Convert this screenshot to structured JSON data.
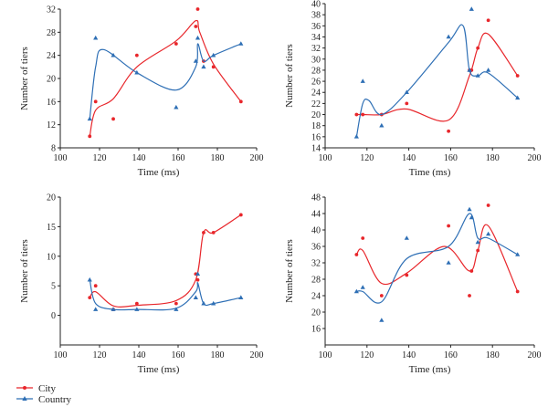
{
  "legend": [
    {
      "name": "City",
      "color": "#e8262b",
      "marker": "circle"
    },
    {
      "name": "Country",
      "color": "#2e6fb5",
      "marker": "triangle"
    }
  ],
  "chart_data": [
    {
      "type": "scatter",
      "position": "top-left",
      "xlabel": "Time (ms)",
      "ylabel": "Number of tiers",
      "xlim": [
        100,
        200
      ],
      "ylim": [
        8,
        32
      ],
      "xticks": [
        100,
        120,
        140,
        160,
        180,
        200
      ],
      "yticks": [
        8,
        12,
        16,
        20,
        24,
        28,
        32
      ],
      "series": [
        {
          "name": "City",
          "color": "#e8262b",
          "marker": "circle",
          "points": [
            [
              115,
              10
            ],
            [
              118,
              16
            ],
            [
              127,
              13
            ],
            [
              139,
              24
            ],
            [
              159,
              26
            ],
            [
              169,
              29
            ],
            [
              170,
              32
            ],
            [
              173,
              23
            ],
            [
              178,
              22
            ],
            [
              192,
              16
            ]
          ],
          "curve": [
            [
              115,
              10
            ],
            [
              118,
              14.5
            ],
            [
              127,
              16.5
            ],
            [
              139,
              22
            ],
            [
              159,
              26.5
            ],
            [
              169,
              30
            ],
            [
              171,
              28
            ],
            [
              178,
              22.5
            ],
            [
              192,
              16
            ]
          ]
        },
        {
          "name": "Country",
          "color": "#2e6fb5",
          "marker": "triangle",
          "points": [
            [
              115,
              13
            ],
            [
              118,
              27
            ],
            [
              127,
              24
            ],
            [
              139,
              21
            ],
            [
              159,
              15
            ],
            [
              169,
              23
            ],
            [
              170,
              27
            ],
            [
              173,
              22
            ],
            [
              178,
              24
            ],
            [
              192,
              26
            ]
          ],
          "curve": [
            [
              115,
              13
            ],
            [
              118,
              22
            ],
            [
              122,
              25
            ],
            [
              139,
              21
            ],
            [
              159,
              18
            ],
            [
              169,
              22
            ],
            [
              170,
              26
            ],
            [
              173,
              23
            ],
            [
              178,
              24
            ],
            [
              192,
              26
            ]
          ]
        }
      ]
    },
    {
      "type": "scatter",
      "position": "top-right",
      "xlabel": "Time (ms)",
      "ylabel": "Number of tiers",
      "xlim": [
        100,
        200
      ],
      "ylim": [
        14,
        40
      ],
      "xticks": [
        100,
        120,
        140,
        160,
        180,
        200
      ],
      "yticks": [
        14,
        16,
        18,
        20,
        22,
        24,
        26,
        28,
        30,
        32,
        34,
        36,
        38,
        40
      ],
      "series": [
        {
          "name": "City",
          "color": "#e8262b",
          "marker": "circle",
          "points": [
            [
              115,
              20
            ],
            [
              118,
              20
            ],
            [
              127,
              20
            ],
            [
              139,
              22
            ],
            [
              159,
              17
            ],
            [
              169,
              28
            ],
            [
              170,
              28
            ],
            [
              173,
              32
            ],
            [
              178,
              37
            ],
            [
              192,
              27
            ]
          ],
          "curve": [
            [
              115,
              20
            ],
            [
              118,
              20
            ],
            [
              127,
              20
            ],
            [
              139,
              21
            ],
            [
              159,
              19
            ],
            [
              169,
              27
            ],
            [
              173,
              32
            ],
            [
              178,
              34.5
            ],
            [
              192,
              27
            ]
          ]
        },
        {
          "name": "Country",
          "color": "#2e6fb5",
          "marker": "triangle",
          "points": [
            [
              115,
              16
            ],
            [
              118,
              26
            ],
            [
              127,
              18
            ],
            [
              139,
              24
            ],
            [
              159,
              34
            ],
            [
              169,
              28
            ],
            [
              170,
              39
            ],
            [
              173,
              27
            ],
            [
              178,
              28
            ],
            [
              192,
              23
            ]
          ],
          "curve": [
            [
              115,
              16
            ],
            [
              118,
              22
            ],
            [
              121,
              22.5
            ],
            [
              127,
              20
            ],
            [
              139,
              24
            ],
            [
              159,
              33
            ],
            [
              166,
              36
            ],
            [
              169,
              28
            ],
            [
              173,
              27
            ],
            [
              178,
              27.5
            ],
            [
              192,
              23
            ]
          ]
        }
      ]
    },
    {
      "type": "scatter",
      "position": "bottom-left",
      "xlabel": "Time (ms)",
      "ylabel": "Number of tiers",
      "xlim": [
        100,
        200
      ],
      "ylim": [
        -5,
        20
      ],
      "xticks": [
        100,
        120,
        140,
        160,
        180,
        200
      ],
      "yticks": [
        0,
        5,
        10,
        15,
        20
      ],
      "series": [
        {
          "name": "City",
          "color": "#e8262b",
          "marker": "circle",
          "points": [
            [
              115,
              3
            ],
            [
              118,
              5
            ],
            [
              127,
              1
            ],
            [
              139,
              2
            ],
            [
              159,
              2
            ],
            [
              169,
              7
            ],
            [
              170,
              6
            ],
            [
              173,
              14
            ],
            [
              178,
              14
            ],
            [
              192,
              17
            ]
          ],
          "curve": [
            [
              115,
              3
            ],
            [
              118,
              4
            ],
            [
              127,
              1.6
            ],
            [
              139,
              1.7
            ],
            [
              159,
              2.5
            ],
            [
              169,
              6
            ],
            [
              173,
              14
            ],
            [
              178,
              14
            ],
            [
              192,
              17
            ]
          ]
        },
        {
          "name": "Country",
          "color": "#2e6fb5",
          "marker": "triangle",
          "points": [
            [
              115,
              6
            ],
            [
              118,
              1
            ],
            [
              127,
              1
            ],
            [
              139,
              1
            ],
            [
              159,
              1
            ],
            [
              169,
              3
            ],
            [
              170,
              7
            ],
            [
              173,
              2
            ],
            [
              178,
              2
            ],
            [
              192,
              3
            ]
          ],
          "curve": [
            [
              115,
              6
            ],
            [
              118,
              2
            ],
            [
              127,
              1
            ],
            [
              139,
              1
            ],
            [
              159,
              1.2
            ],
            [
              169,
              4
            ],
            [
              170,
              5.5
            ],
            [
              173,
              2
            ],
            [
              178,
              2
            ],
            [
              192,
              3
            ]
          ]
        }
      ]
    },
    {
      "type": "scatter",
      "position": "bottom-right",
      "xlabel": "Time (ms)",
      "ylabel": "Number of tiers",
      "xlim": [
        100,
        200
      ],
      "ylim": [
        12,
        48
      ],
      "xticks": [
        100,
        120,
        140,
        160,
        180,
        200
      ],
      "yticks": [
        16,
        20,
        24,
        28,
        32,
        36,
        40,
        44,
        48
      ],
      "series": [
        {
          "name": "City",
          "color": "#e8262b",
          "marker": "circle",
          "points": [
            [
              115,
              34
            ],
            [
              118,
              38
            ],
            [
              127,
              24
            ],
            [
              139,
              29
            ],
            [
              159,
              41
            ],
            [
              169,
              24
            ],
            [
              170,
              30
            ],
            [
              173,
              35
            ],
            [
              178,
              46
            ],
            [
              192,
              25
            ]
          ],
          "curve": [
            [
              115,
              34
            ],
            [
              118,
              35
            ],
            [
              127,
              27
            ],
            [
              139,
              29.5
            ],
            [
              157,
              36
            ],
            [
              169,
              30
            ],
            [
              173,
              35
            ],
            [
              178,
              41
            ],
            [
              192,
              25
            ]
          ]
        },
        {
          "name": "Country",
          "color": "#2e6fb5",
          "marker": "triangle",
          "points": [
            [
              115,
              25
            ],
            [
              118,
              26
            ],
            [
              127,
              18
            ],
            [
              139,
              38
            ],
            [
              159,
              32
            ],
            [
              169,
              45
            ],
            [
              170,
              43
            ],
            [
              173,
              37
            ],
            [
              178,
              39
            ],
            [
              192,
              34
            ]
          ],
          "curve": [
            [
              115,
              25
            ],
            [
              118,
              25
            ],
            [
              127,
              22.5
            ],
            [
              139,
              33
            ],
            [
              159,
              36
            ],
            [
              169,
              44
            ],
            [
              173,
              38
            ],
            [
              178,
              38
            ],
            [
              192,
              34
            ]
          ]
        }
      ]
    }
  ]
}
